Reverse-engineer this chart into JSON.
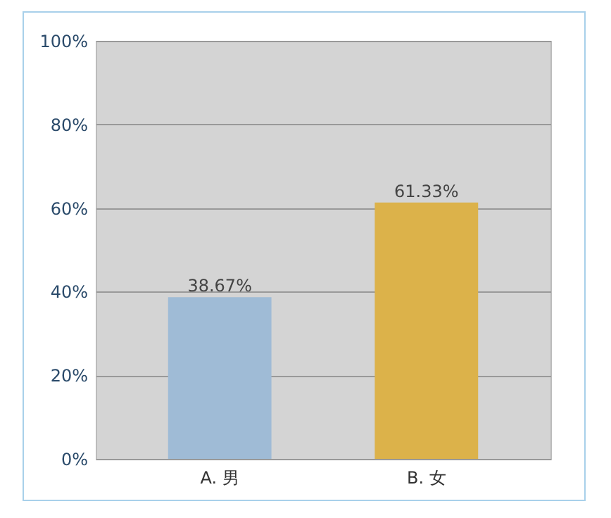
{
  "chart_data": {
    "type": "bar",
    "categories": [
      "A. 男",
      "B. 女"
    ],
    "values": [
      38.67,
      61.33
    ],
    "colors": [
      "#9fbbd6",
      "#dcb24a"
    ],
    "value_labels": [
      "38.67%",
      "61.33%"
    ],
    "ylim": [
      0,
      100
    ],
    "yticks": [
      {
        "value": 0,
        "label": "0%"
      },
      {
        "value": 20,
        "label": "20%"
      },
      {
        "value": 40,
        "label": "40%"
      },
      {
        "value": 60,
        "label": "60%"
      },
      {
        "value": 80,
        "label": "80%"
      },
      {
        "value": 100,
        "label": "100%"
      }
    ],
    "grid": "y"
  }
}
